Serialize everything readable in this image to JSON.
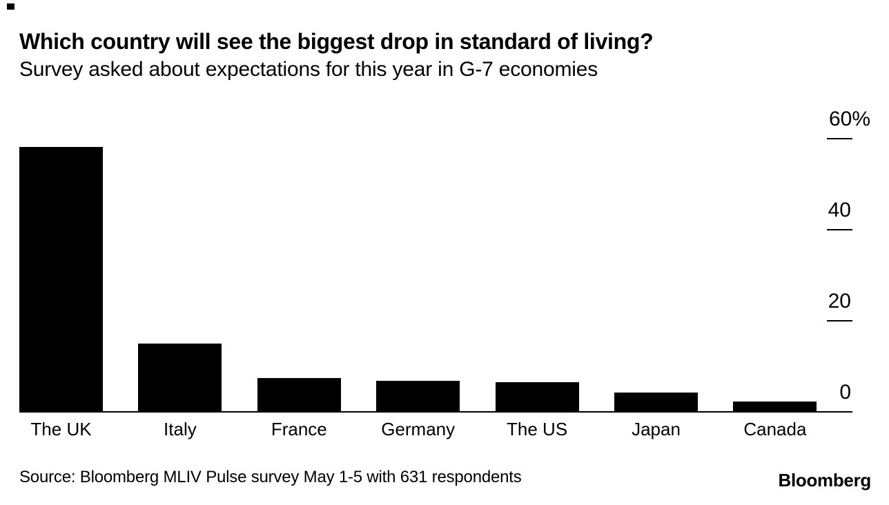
{
  "chart": {
    "title": "Which country will see the biggest drop in standard of living?",
    "subtitle": "Survey asked about expectations for this year in G-7 economies"
  },
  "chart_data": {
    "type": "bar",
    "title": "Which country will see the biggest drop in standard of living?",
    "subtitle": "Survey asked about expectations for this year in G-7 economies",
    "categories": [
      "The UK",
      "Italy",
      "France",
      "Germany",
      "The US",
      "Japan",
      "Canada"
    ],
    "values": [
      58,
      14.8,
      7.3,
      6.7,
      6.4,
      4.1,
      2.1
    ],
    "unit": "%",
    "xlabel": "",
    "ylabel": "",
    "ylim": [
      0,
      60
    ],
    "y_ticks": [
      {
        "value": 60,
        "label": "60%",
        "tick": true
      },
      {
        "value": 40,
        "label": "40",
        "tick": true
      },
      {
        "value": 20,
        "label": "20",
        "tick": true
      },
      {
        "value": 0,
        "label": "0",
        "tick": false
      }
    ],
    "axis_side": "right",
    "grid": false,
    "legend": null,
    "colors": {
      "bar": "#000000",
      "text": "#000000",
      "background": "#ffffff"
    }
  },
  "footer": {
    "source": "Source: Bloomberg MLIV Pulse survey May 1-5 with 631 respondents",
    "logo": "Bloomberg"
  }
}
